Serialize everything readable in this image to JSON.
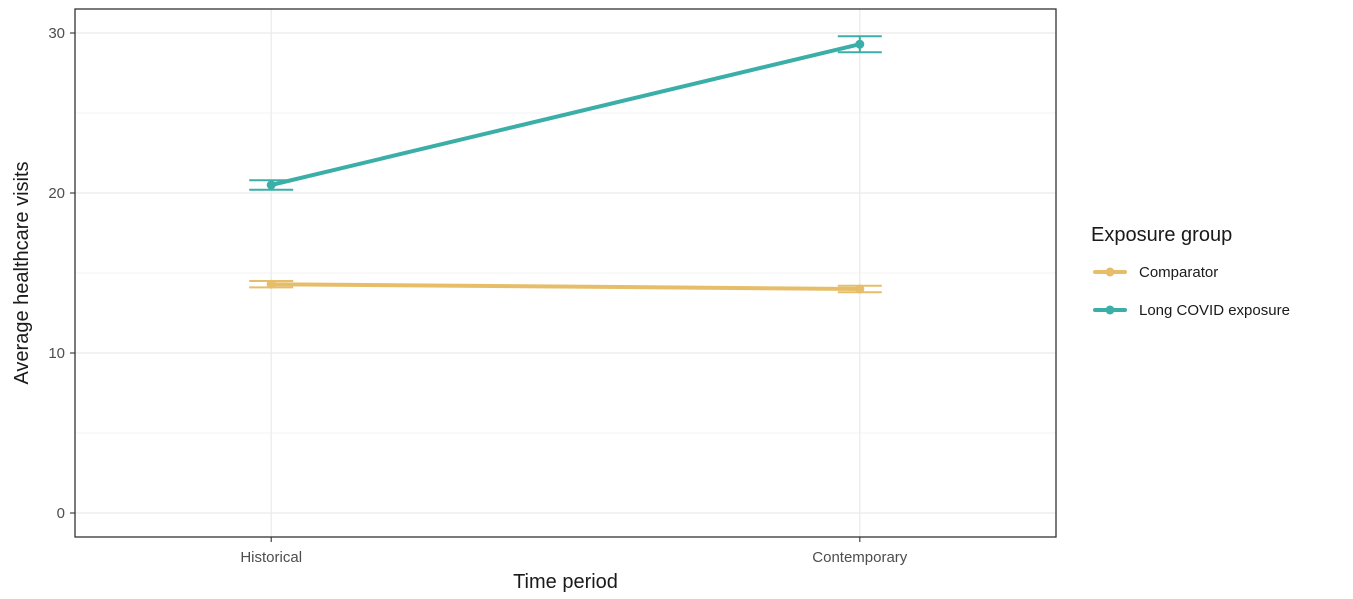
{
  "chart_data": {
    "type": "line",
    "title": "",
    "xlabel": "Time period",
    "ylabel": "Average healthcare visits",
    "categories": [
      "Historical",
      "Contemporary"
    ],
    "ylim": [
      -1.5,
      31.5
    ],
    "yticks": [
      0,
      10,
      20,
      30
    ],
    "grid": true,
    "legend": {
      "title": "Exposure group",
      "position": "right"
    },
    "series": [
      {
        "name": "Comparator",
        "color": "#E6BE6A",
        "values": [
          14.3,
          14.0
        ],
        "lower": [
          14.1,
          13.8
        ],
        "upper": [
          14.5,
          14.2
        ]
      },
      {
        "name": "Long COVID exposure",
        "color": "#3BAFA7",
        "values": [
          20.5,
          29.3
        ],
        "lower": [
          20.2,
          28.8
        ],
        "upper": [
          20.8,
          29.8
        ]
      }
    ]
  }
}
